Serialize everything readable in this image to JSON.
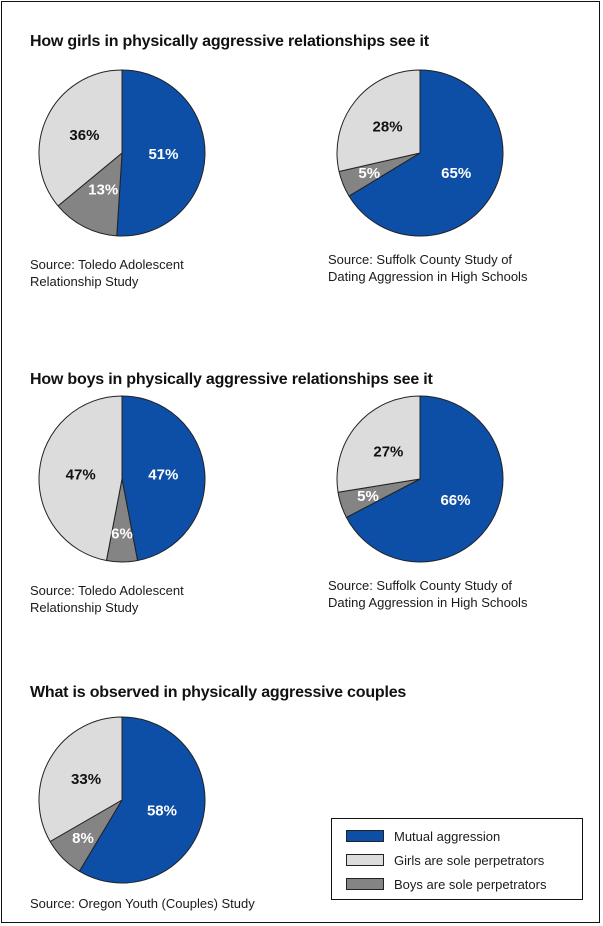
{
  "colors": {
    "mutual": "#0d4ea6",
    "girls": "#dcdcdc",
    "boys": "#848484",
    "border": "#222222"
  },
  "sections": [
    {
      "title": "How girls in physically aggressive relationships see it"
    },
    {
      "title": "How boys in physically aggressive relationships see it"
    },
    {
      "title": "What is observed in physically aggressive couples"
    }
  ],
  "legend": {
    "items": [
      {
        "label": "Mutual aggression",
        "color": "#0d4ea6"
      },
      {
        "label": "Girls are sole perpetrators",
        "color": "#dcdcdc"
      },
      {
        "label": "Boys are sole perpetrators",
        "color": "#848484"
      }
    ]
  },
  "chart_data": [
    {
      "type": "pie",
      "section": "How girls in physically aggressive relationships see it",
      "source": [
        "Source: Toledo Adolescent",
        "Relationship Study"
      ],
      "slices": [
        {
          "label": "51%",
          "category": "Mutual aggression",
          "value": 51
        },
        {
          "label": "13%",
          "category": "Boys are sole perpetrators",
          "value": 13
        },
        {
          "label": "36%",
          "category": "Girls are sole perpetrators",
          "value": 36
        }
      ]
    },
    {
      "type": "pie",
      "section": "How girls in physically aggressive relationships see it",
      "source": [
        "Source: Suffolk County Study of",
        "Dating Aggression in High Schools"
      ],
      "slices": [
        {
          "label": "65%",
          "category": "Mutual aggression",
          "value": 65
        },
        {
          "label": "5%",
          "category": "Boys are sole perpetrators",
          "value": 5
        },
        {
          "label": "28%",
          "category": "Girls are sole perpetrators",
          "value": 28
        }
      ]
    },
    {
      "type": "pie",
      "section": "How boys in physically aggressive relationships see it",
      "source": [
        "Source: Toledo Adolescent",
        "Relationship Study"
      ],
      "slices": [
        {
          "label": "47%",
          "category": "Mutual aggression",
          "value": 47
        },
        {
          "label": "6%",
          "category": "Boys are sole perpetrators",
          "value": 6
        },
        {
          "label": "47%",
          "category": "Girls are sole perpetrators",
          "value": 47
        }
      ]
    },
    {
      "type": "pie",
      "section": "How boys in physically aggressive relationships see it",
      "source": [
        "Source: Suffolk County Study of",
        "Dating Aggression in High Schools"
      ],
      "slices": [
        {
          "label": "66%",
          "category": "Mutual aggression",
          "value": 66
        },
        {
          "label": "5%",
          "category": "Boys are sole perpetrators",
          "value": 5
        },
        {
          "label": "27%",
          "category": "Girls are sole perpetrators",
          "value": 27
        }
      ]
    },
    {
      "type": "pie",
      "section": "What is observed in physically aggressive couples",
      "source": [
        "Source: Oregon Youth (Couples) Study"
      ],
      "slices": [
        {
          "label": "58%",
          "category": "Mutual aggression",
          "value": 58
        },
        {
          "label": "8%",
          "category": "Boys are sole perpetrators",
          "value": 8
        },
        {
          "label": "33%",
          "category": "Girls are sole perpetrators",
          "value": 33
        }
      ]
    }
  ]
}
